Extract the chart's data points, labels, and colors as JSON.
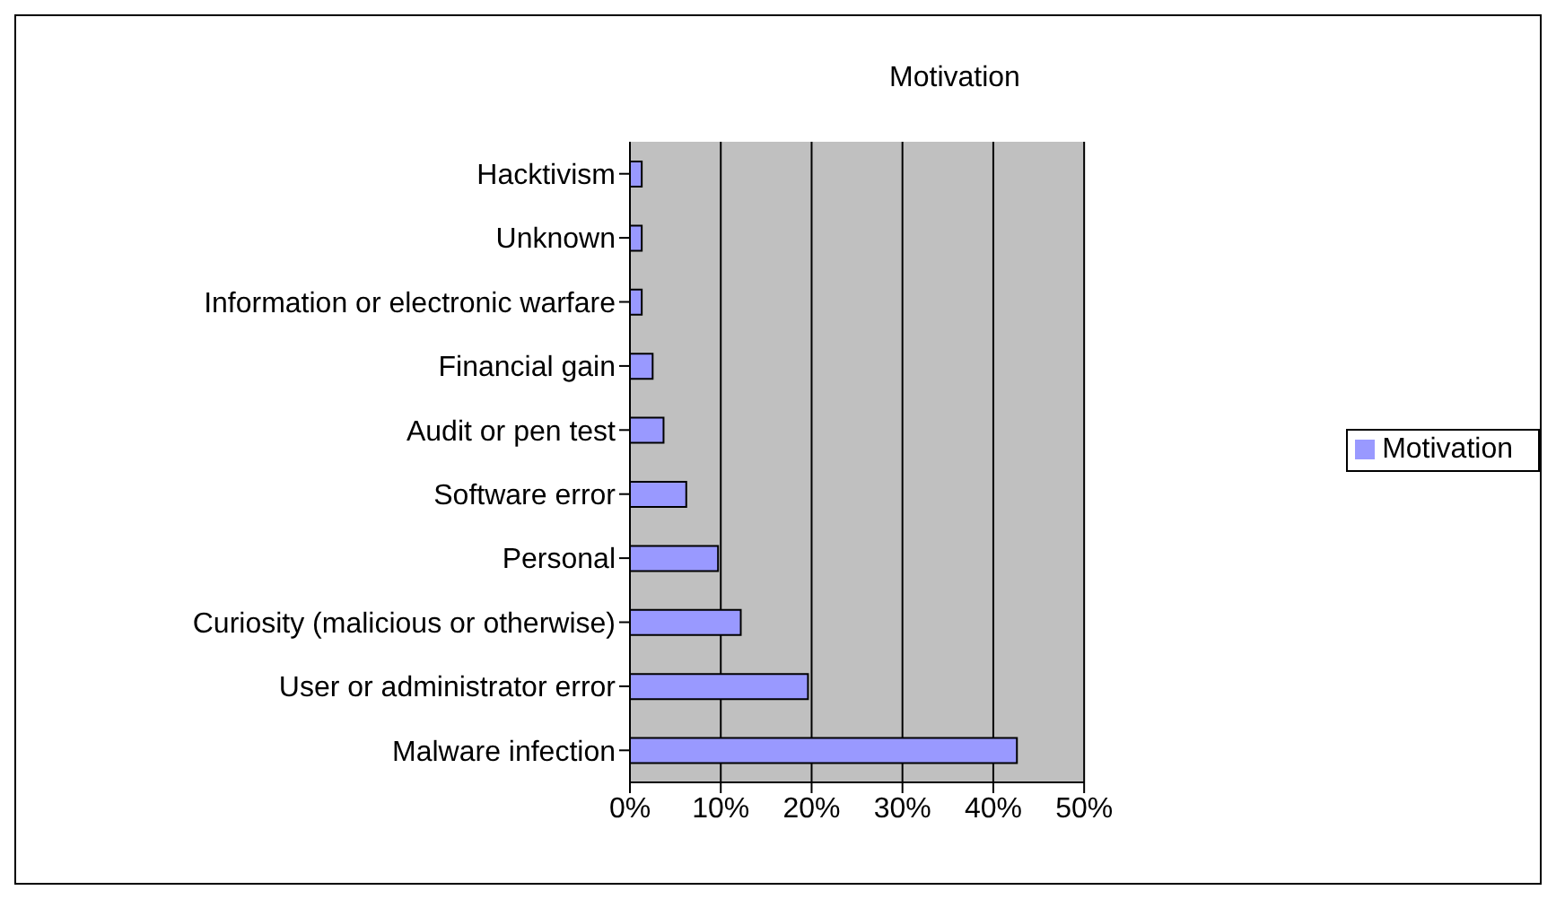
{
  "chart_data": {
    "type": "bar",
    "orientation": "horizontal",
    "title": "Motivation",
    "categories": [
      "Hacktivism",
      "Unknown",
      "Information or electronic warfare",
      "Financial gain",
      "Audit or pen test",
      "Software error",
      "Personal",
      "Curiosity (malicious or otherwise)",
      "User or administrator error",
      "Malware infection"
    ],
    "series": [
      {
        "name": "Motivation",
        "color": "#9999ff",
        "values": [
          1.3,
          1.3,
          1.3,
          2.5,
          3.7,
          6.2,
          9.7,
          12.2,
          19.6,
          42.6
        ]
      }
    ],
    "xlim": [
      0,
      50
    ],
    "xticks": [
      {
        "value": 0,
        "label": "0%"
      },
      {
        "value": 10,
        "label": "10%"
      },
      {
        "value": 20,
        "label": "20%"
      },
      {
        "value": 30,
        "label": "30%"
      },
      {
        "value": 40,
        "label": "40%"
      },
      {
        "value": 50,
        "label": "50%"
      }
    ],
    "grid": "x",
    "legend": "right"
  }
}
